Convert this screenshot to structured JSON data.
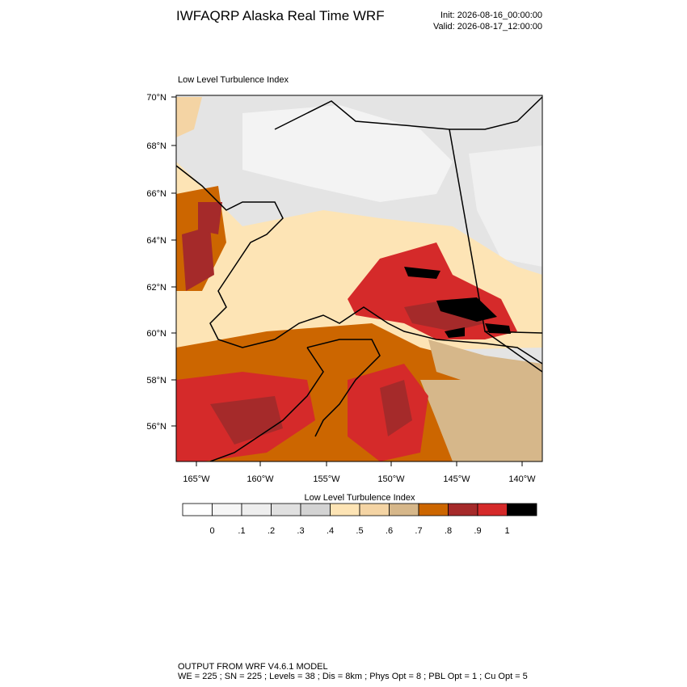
{
  "header": {
    "title": "IWFAQRP Alaska Real Time WRF",
    "init": "Init: 2026-08-16_00:00:00",
    "valid": "Valid: 2026-08-17_12:00:00"
  },
  "map": {
    "title": "Low Level Turbulence Index",
    "lat_labels": [
      "70°N",
      "68°N",
      "66°N",
      "64°N",
      "62°N",
      "60°N",
      "58°N",
      "56°N"
    ],
    "lon_labels": [
      "165°W",
      "160°W",
      "155°W",
      "150°W",
      "145°W",
      "140°W"
    ]
  },
  "colorbar": {
    "title": "Low Level Turbulence Index",
    "colors": [
      "#ffffff",
      "#f6f6f6",
      "#eeeeee",
      "#e0e0e0",
      "#d3d3d3",
      "#fde4b5",
      "#f4d4a4",
      "#d6b78a",
      "#cc6600",
      "#a52a2a",
      "#d52a2a",
      "#000000"
    ],
    "ticks": [
      0,
      {
        "value": 0.1,
        "label": ".1"
      },
      {
        "value": 0.2,
        "label": ".2"
      },
      {
        "value": 0.3,
        "label": ".3"
      },
      {
        "value": 0.4,
        "label": ".4"
      },
      {
        "value": 0.5,
        "label": ".5"
      },
      {
        "value": 0.6,
        "label": ".6"
      },
      {
        "value": 0.7,
        "label": ".7"
      },
      {
        "value": 0.8,
        "label": ".8"
      },
      {
        "value": 0.9,
        "label": ".9"
      },
      1
    ]
  },
  "footer": {
    "line1": "OUTPUT FROM WRF V4.6.1 MODEL",
    "line2": "WE = 225 ; SN = 225 ; Levels = 38 ; Dis = 8km ; Phys Opt = 8 ; PBL Opt = 1 ; Cu Opt = 5"
  }
}
